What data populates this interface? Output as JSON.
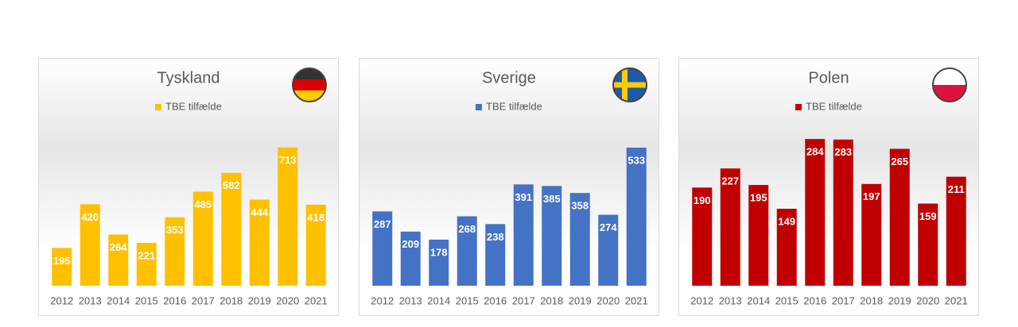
{
  "chart_data": [
    {
      "type": "bar",
      "title": "Tyskland",
      "categories": [
        "2012",
        "2013",
        "2014",
        "2015",
        "2016",
        "2017",
        "2018",
        "2019",
        "2020",
        "2021"
      ],
      "series": [
        {
          "name": "TBE tilfælde",
          "color": "#ffc000",
          "values": [
            195,
            420,
            264,
            221,
            353,
            485,
            582,
            444,
            713,
            418
          ]
        }
      ],
      "ylim": [
        0,
        900
      ]
    },
    {
      "type": "bar",
      "title": "Sverige",
      "categories": [
        "2012",
        "2013",
        "2014",
        "2015",
        "2016",
        "2017",
        "2018",
        "2019",
        "2020",
        "2021"
      ],
      "series": [
        {
          "name": "TBE tilfælde",
          "color": "#4472c4",
          "values": [
            287,
            209,
            178,
            268,
            238,
            391,
            385,
            358,
            274,
            533
          ]
        }
      ],
      "ylim": [
        0,
        674
      ]
    },
    {
      "type": "bar",
      "title": "Polen",
      "categories": [
        "2012",
        "2013",
        "2014",
        "2015",
        "2016",
        "2017",
        "2018",
        "2019",
        "2020",
        "2021"
      ],
      "series": [
        {
          "name": "TBE tilfælde",
          "color": "#c00000",
          "values": [
            190,
            227,
            195,
            149,
            284,
            283,
            197,
            265,
            159,
            211
          ]
        }
      ],
      "ylim": [
        0,
        338
      ]
    }
  ]
}
